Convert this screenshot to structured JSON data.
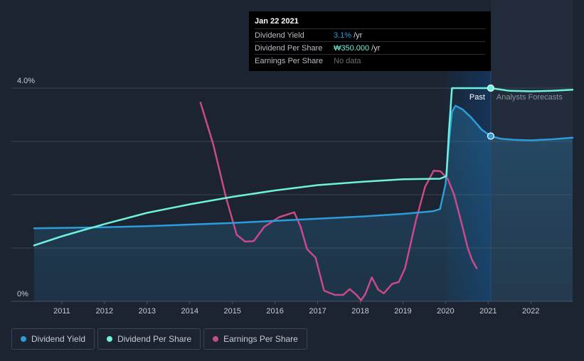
{
  "tooltip": {
    "date": "Jan 22 2021",
    "rows": [
      {
        "label": "Dividend Yield",
        "value": "3.1%",
        "unit": "/yr"
      },
      {
        "label": "Dividend Per Share",
        "value": "₩350.000",
        "unit": "/yr"
      },
      {
        "label": "Earnings Per Share",
        "value": "No data",
        "unit": ""
      }
    ]
  },
  "period_labels": {
    "past": "Past",
    "forecast": "Analysts Forecasts"
  },
  "colors": {
    "background": "#1c2431",
    "dividend_yield": "#2d9cdb",
    "dividend_per_share": "#6ff2dc",
    "earnings_per_share": "#c84a8b",
    "past_highlight": "#14375f"
  },
  "legend": [
    {
      "label": "Dividend Yield",
      "color": "#2d9cdb"
    },
    {
      "label": "Dividend Per Share",
      "color": "#6ff2dc"
    },
    {
      "label": "Earnings Per Share",
      "color": "#c84a8b"
    }
  ],
  "chart_data": {
    "type": "line",
    "xlim": [
      2010.35,
      2022.98
    ],
    "ylim": [
      0,
      4.0
    ],
    "y_ticks": [
      {
        "value": 4.0,
        "label": "4.0%"
      },
      {
        "value": 0,
        "label": "0%"
      }
    ],
    "x_ticks": [
      {
        "value": 2011,
        "label": "2011"
      },
      {
        "value": 2012,
        "label": "2012"
      },
      {
        "value": 2013,
        "label": "2013"
      },
      {
        "value": 2014,
        "label": "2014"
      },
      {
        "value": 2015,
        "label": "2015"
      },
      {
        "value": 2016,
        "label": "2016"
      },
      {
        "value": 2017,
        "label": "2017"
      },
      {
        "value": 2018,
        "label": "2018"
      },
      {
        "value": 2019,
        "label": "2019"
      },
      {
        "value": 2020,
        "label": "2020"
      },
      {
        "value": 2021,
        "label": "2021"
      },
      {
        "value": 2022,
        "label": "2022"
      }
    ],
    "gridlines": [
      4.0,
      3.0,
      2.0,
      1.0
    ],
    "past_region": [
      2020.02,
      2021.06
    ],
    "forecast_start": 2021.06,
    "marker_x": 2021.06,
    "series": [
      {
        "name": "Dividend Yield",
        "color": "#2d9cdb",
        "fill": true,
        "points": [
          [
            2010.35,
            1.37
          ],
          [
            2012.0,
            1.39
          ],
          [
            2013.0,
            1.41
          ],
          [
            2014.0,
            1.44
          ],
          [
            2015.0,
            1.47
          ],
          [
            2016.0,
            1.51
          ],
          [
            2017.0,
            1.55
          ],
          [
            2018.0,
            1.59
          ],
          [
            2019.0,
            1.64
          ],
          [
            2019.7,
            1.69
          ],
          [
            2019.87,
            1.73
          ],
          [
            2020.0,
            2.2
          ],
          [
            2020.08,
            3.0
          ],
          [
            2020.15,
            3.55
          ],
          [
            2020.23,
            3.67
          ],
          [
            2020.4,
            3.6
          ],
          [
            2020.6,
            3.45
          ],
          [
            2020.85,
            3.22
          ],
          [
            2021.06,
            3.1
          ],
          [
            2021.3,
            3.05
          ],
          [
            2021.6,
            3.03
          ],
          [
            2022.0,
            3.02
          ],
          [
            2022.5,
            3.04
          ],
          [
            2022.98,
            3.07
          ]
        ]
      },
      {
        "name": "Dividend Per Share",
        "color": "#6ff2dc",
        "fill": false,
        "points": [
          [
            2010.35,
            1.05
          ],
          [
            2011.0,
            1.22
          ],
          [
            2012.0,
            1.45
          ],
          [
            2013.0,
            1.66
          ],
          [
            2014.0,
            1.82
          ],
          [
            2015.0,
            1.96
          ],
          [
            2016.0,
            2.08
          ],
          [
            2017.0,
            2.18
          ],
          [
            2018.0,
            2.24
          ],
          [
            2019.0,
            2.29
          ],
          [
            2019.87,
            2.3
          ],
          [
            2020.02,
            2.35
          ],
          [
            2020.08,
            3.2
          ],
          [
            2020.15,
            4.0
          ],
          [
            2020.5,
            4.0
          ],
          [
            2021.06,
            4.0
          ],
          [
            2021.5,
            3.95
          ],
          [
            2022.0,
            3.94
          ],
          [
            2022.5,
            3.95
          ],
          [
            2022.98,
            3.97
          ]
        ]
      },
      {
        "name": "Earnings Per Share",
        "color": "#c84a8b",
        "fill": false,
        "points": [
          [
            2014.25,
            3.73
          ],
          [
            2014.55,
            2.95
          ],
          [
            2014.85,
            1.95
          ],
          [
            2015.1,
            1.25
          ],
          [
            2015.3,
            1.12
          ],
          [
            2015.5,
            1.13
          ],
          [
            2015.75,
            1.4
          ],
          [
            2016.1,
            1.58
          ],
          [
            2016.45,
            1.67
          ],
          [
            2016.6,
            1.4
          ],
          [
            2016.75,
            0.98
          ],
          [
            2016.95,
            0.82
          ],
          [
            2017.15,
            0.2
          ],
          [
            2017.4,
            0.12
          ],
          [
            2017.6,
            0.12
          ],
          [
            2017.75,
            0.23
          ],
          [
            2017.9,
            0.13
          ],
          [
            2018.02,
            0.02
          ],
          [
            2018.12,
            0.14
          ],
          [
            2018.27,
            0.45
          ],
          [
            2018.42,
            0.22
          ],
          [
            2018.55,
            0.15
          ],
          [
            2018.75,
            0.33
          ],
          [
            2018.9,
            0.36
          ],
          [
            2019.05,
            0.62
          ],
          [
            2019.3,
            1.5
          ],
          [
            2019.52,
            2.15
          ],
          [
            2019.72,
            2.45
          ],
          [
            2019.88,
            2.44
          ],
          [
            2020.05,
            2.3
          ],
          [
            2020.2,
            2.0
          ],
          [
            2020.38,
            1.45
          ],
          [
            2020.52,
            1.0
          ],
          [
            2020.62,
            0.78
          ],
          [
            2020.73,
            0.62
          ]
        ]
      }
    ]
  }
}
